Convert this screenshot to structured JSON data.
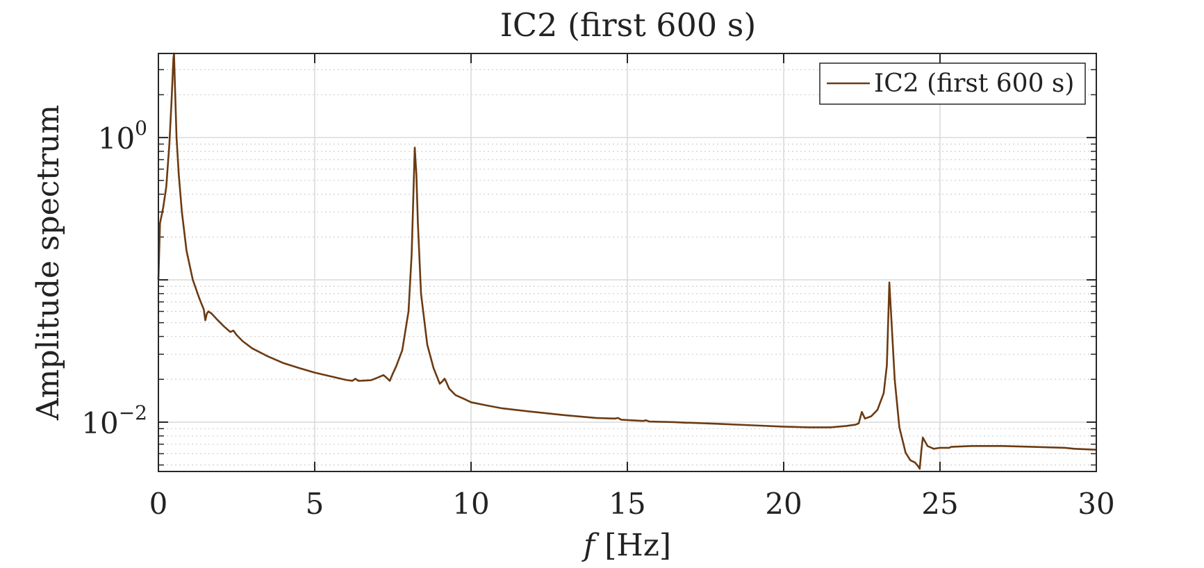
{
  "chart_data": {
    "type": "line",
    "title": "IC2 (first 600 s)",
    "xlabel_var": "f",
    "xlabel_unit": "[Hz]",
    "ylabel": "Amplitude spectrum",
    "xlim": [
      0,
      30
    ],
    "ylim": [
      0.0045,
      3.9
    ],
    "yscale": "log",
    "grid": true,
    "minor_grid": true,
    "legend_position": "top-right",
    "x_ticks": [
      "0",
      "5",
      "10",
      "15",
      "20",
      "25",
      "30"
    ],
    "y_ticks": [
      {
        "value": 1,
        "base": "10",
        "exp": "0"
      },
      {
        "value": 0.01,
        "base": "10",
        "exp": "−2"
      }
    ],
    "series": [
      {
        "name": "IC2 (first 600 s)",
        "color": "#6b3a12",
        "x": [
          0,
          0.05,
          0.15,
          0.25,
          0.35,
          0.42,
          0.48,
          0.5,
          0.52,
          0.58,
          0.65,
          0.75,
          0.9,
          1.1,
          1.3,
          1.45,
          1.5,
          1.55,
          1.6,
          1.7,
          1.9,
          2.1,
          2.3,
          2.4,
          2.5,
          2.7,
          3.0,
          3.5,
          4.0,
          4.5,
          5.0,
          5.5,
          6.0,
          6.2,
          6.3,
          6.4,
          6.6,
          6.8,
          7.0,
          7.2,
          7.3,
          7.4,
          7.5,
          7.6,
          7.8,
          8.0,
          8.1,
          8.2,
          8.25,
          8.3,
          8.4,
          8.6,
          8.8,
          9.0,
          9.1,
          9.15,
          9.2,
          9.3,
          9.5,
          9.8,
          10.0,
          10.5,
          11,
          12,
          13,
          14,
          14.6,
          14.7,
          14.8,
          15.5,
          15.6,
          15.7,
          16.5,
          16.9,
          17,
          18,
          19,
          20,
          20.8,
          21.5,
          22.0,
          22.3,
          22.4,
          22.5,
          22.6,
          22.8,
          23.0,
          23.2,
          23.3,
          23.38,
          23.45,
          23.55,
          23.7,
          23.9,
          24.05,
          24.2,
          24.3,
          24.35,
          24.4,
          24.45,
          24.6,
          24.8,
          25.0,
          25.3,
          25.35,
          26,
          27,
          28,
          29,
          29.3,
          30
        ],
        "y": [
          0.1,
          0.25,
          0.32,
          0.45,
          0.9,
          1.8,
          3.6,
          3.9,
          2.7,
          1.0,
          0.55,
          0.3,
          0.16,
          0.1,
          0.075,
          0.062,
          0.052,
          0.058,
          0.06,
          0.058,
          0.052,
          0.047,
          0.043,
          0.044,
          0.041,
          0.037,
          0.033,
          0.029,
          0.026,
          0.024,
          0.0223,
          0.021,
          0.0198,
          0.0195,
          0.0202,
          0.0195,
          0.0196,
          0.0197,
          0.0205,
          0.0214,
          0.0205,
          0.0195,
          0.022,
          0.0245,
          0.032,
          0.06,
          0.15,
          0.85,
          0.55,
          0.25,
          0.08,
          0.035,
          0.024,
          0.0186,
          0.0195,
          0.0202,
          0.0193,
          0.0172,
          0.0155,
          0.0145,
          0.0138,
          0.0131,
          0.0125,
          0.0118,
          0.0112,
          0.0107,
          0.0106,
          0.0107,
          0.0104,
          0.0102,
          0.0103,
          0.0101,
          0.01,
          0.0099,
          0.0099,
          0.0097,
          0.0095,
          0.0093,
          0.0092,
          0.0092,
          0.0094,
          0.0096,
          0.0098,
          0.0118,
          0.0106,
          0.011,
          0.0122,
          0.016,
          0.025,
          0.096,
          0.05,
          0.02,
          0.0092,
          0.0061,
          0.0054,
          0.0052,
          0.0049,
          0.0047,
          0.0062,
          0.0078,
          0.0068,
          0.0065,
          0.0066,
          0.0066,
          0.0067,
          0.0068,
          0.0068,
          0.0067,
          0.0066,
          0.0065,
          0.0064
        ]
      }
    ]
  }
}
